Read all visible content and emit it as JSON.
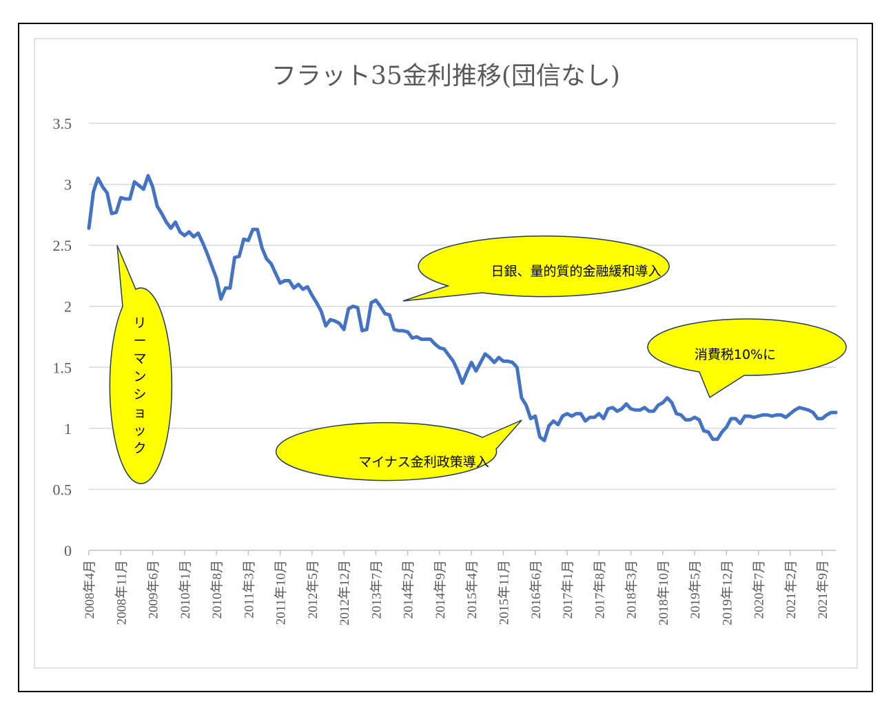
{
  "chart_data": {
    "type": "line",
    "title": "フラット35金利推移(団信なし)",
    "xlabel": "",
    "ylabel": "",
    "ylim": [
      0,
      3.5
    ],
    "yticks": [
      "0",
      "0.5",
      "1",
      "1.5",
      "2",
      "2.5",
      "3",
      "3.5"
    ],
    "grid": true,
    "legend": "none",
    "series_color": "#4472c4",
    "x_tick_labels": [
      "2008年4月",
      "2008年11月",
      "2009年6月",
      "2010年1月",
      "2010年8月",
      "2011年3月",
      "2011年10月",
      "2012年5月",
      "2012年12月",
      "2013年7月",
      "2014年2月",
      "2014年9月",
      "2015年4月",
      "2015年11月",
      "2016年6月",
      "2017年1月",
      "2017年8月",
      "2018年3月",
      "2018年10月",
      "2019年5月",
      "2019年12月",
      "2020年7月",
      "2021年2月",
      "2021年9月"
    ],
    "series": [
      {
        "start": "2008年4月",
        "values": [
          2.64,
          2.94,
          3.05,
          2.98,
          2.93,
          2.76,
          2.77,
          2.89,
          2.88,
          2.88,
          3.02,
          2.99,
          2.96,
          3.07,
          2.98,
          2.82,
          2.76,
          2.69,
          2.64,
          2.69,
          2.61,
          2.58,
          2.61,
          2.57,
          2.6,
          2.52,
          2.43,
          2.33,
          2.23,
          2.06,
          2.15,
          2.15,
          2.4,
          2.41,
          2.55,
          2.54,
          2.63,
          2.63,
          2.48,
          2.39,
          2.35,
          2.27,
          2.19,
          2.21,
          2.21,
          2.15,
          2.18,
          2.14,
          2.16,
          2.09,
          2.03,
          1.96,
          1.84,
          1.89,
          1.88,
          1.86,
          1.81,
          1.98,
          2.0,
          1.99,
          1.8,
          1.81,
          2.03,
          2.05,
          2.0,
          1.94,
          1.93,
          1.81,
          1.8,
          1.8,
          1.79,
          1.74,
          1.75,
          1.73,
          1.73,
          1.73,
          1.69,
          1.66,
          1.65,
          1.6,
          1.55,
          1.47,
          1.37,
          1.46,
          1.54,
          1.47,
          1.54,
          1.61,
          1.58,
          1.54,
          1.58,
          1.55,
          1.55,
          1.54,
          1.5,
          1.25,
          1.19,
          1.08,
          1.1,
          0.93,
          0.9,
          1.02,
          1.06,
          1.03,
          1.1,
          1.12,
          1.1,
          1.12,
          1.12,
          1.06,
          1.09,
          1.09,
          1.12,
          1.08,
          1.16,
          1.17,
          1.14,
          1.16,
          1.2,
          1.16,
          1.15,
          1.15,
          1.17,
          1.14,
          1.14,
          1.19,
          1.21,
          1.25,
          1.21,
          1.12,
          1.11,
          1.07,
          1.07,
          1.09,
          1.07,
          0.98,
          0.97,
          0.91,
          0.91,
          0.97,
          1.01,
          1.08,
          1.08,
          1.04,
          1.1,
          1.1,
          1.09,
          1.1,
          1.11,
          1.11,
          1.1,
          1.11,
          1.11,
          1.09,
          1.12,
          1.15,
          1.17,
          1.16,
          1.15,
          1.13,
          1.08,
          1.08,
          1.11,
          1.13,
          1.13
        ]
      }
    ],
    "annotations": [
      {
        "text": "リーマンショック"
      },
      {
        "text": "日銀、量的質的金融緩和導入"
      },
      {
        "text": "マイナス金利政策導入"
      },
      {
        "text": "消費税10%に"
      }
    ],
    "callout_fill": "#ffff00",
    "callout_border": "#1f3864"
  }
}
